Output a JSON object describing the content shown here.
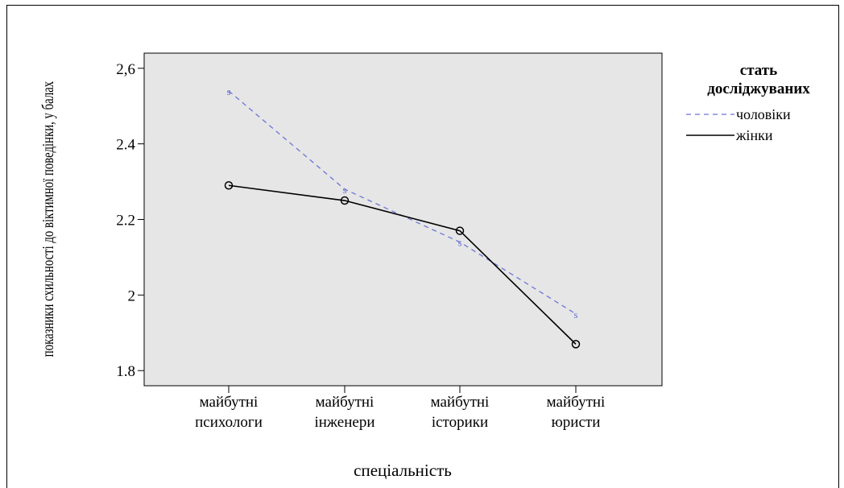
{
  "chart_data": {
    "type": "line",
    "title": "",
    "xlabel": "спеціальність",
    "ylabel": "показники схильності до віктимної поведінки, у балах",
    "categories": [
      [
        "майбутні",
        "психологи"
      ],
      [
        "майбутні",
        "інженери"
      ],
      [
        "майбутні",
        "історики"
      ],
      [
        "майбутні",
        "юристи"
      ]
    ],
    "ylim": [
      1.76,
      2.64
    ],
    "yticks": [
      1.8,
      2.0,
      2.2,
      2.4,
      2.6
    ],
    "ytick_labels": [
      "1.8",
      "2",
      "2.2",
      "2.4",
      "2,6"
    ],
    "grid": false,
    "legend": {
      "title_lines": [
        "стать",
        "досліджуваних"
      ],
      "placement": "right"
    },
    "series": [
      {
        "name": "чоловіки",
        "values": [
          2.54,
          2.28,
          2.14,
          1.95
        ],
        "style": "dashed",
        "color": "#6b74d8",
        "marker": "s"
      },
      {
        "name": "жінки",
        "values": [
          2.29,
          2.25,
          2.17,
          1.87
        ],
        "style": "solid",
        "color": "#000000",
        "marker": "o"
      }
    ]
  },
  "colors": {
    "plot_background": "#e6e6e6",
    "axis": "#000000"
  }
}
